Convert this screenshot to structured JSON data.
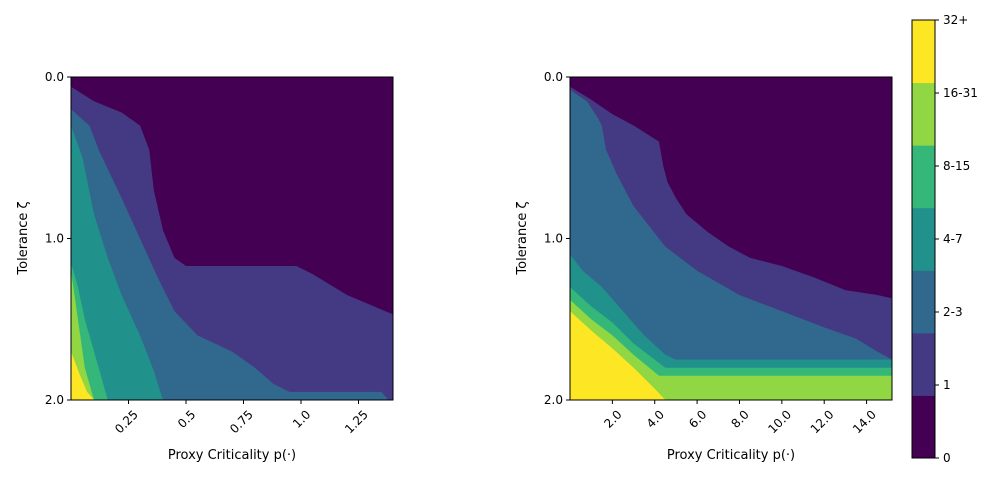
{
  "chart_data": [
    {
      "type": "heatmap",
      "xlabel": "Proxy Criticality p(·)",
      "ylabel": "Tolerance ζ",
      "xlim": [
        0.0,
        1.4
      ],
      "ylim": [
        0.0,
        2.0
      ],
      "y_inverted": true,
      "xticks": [
        {
          "value": 0.25,
          "label": "0.25"
        },
        {
          "value": 0.5,
          "label": "0.5"
        },
        {
          "value": 0.75,
          "label": "0.75"
        },
        {
          "value": 1.0,
          "label": "1.0"
        },
        {
          "value": 1.25,
          "label": "1.25"
        }
      ],
      "xtick_rotation": 45,
      "yticks": [
        {
          "value": 0.0,
          "label": "0.0"
        },
        {
          "value": 1.0,
          "label": "1.0"
        },
        {
          "value": 2.0,
          "label": "2.0"
        }
      ],
      "region_boundaries": [
        {
          "level": "1",
          "points": [
            [
              0.0,
              0.06
            ],
            [
              0.1,
              0.15
            ],
            [
              0.22,
              0.22
            ],
            [
              0.3,
              0.3
            ],
            [
              0.34,
              0.45
            ],
            [
              0.36,
              0.7
            ],
            [
              0.4,
              0.95
            ],
            [
              0.45,
              1.12
            ],
            [
              0.5,
              1.17
            ],
            [
              0.98,
              1.17
            ],
            [
              1.05,
              1.22
            ],
            [
              1.2,
              1.35
            ],
            [
              1.4,
              1.47
            ]
          ]
        },
        {
          "level": "2-3",
          "points": [
            [
              0.0,
              0.2
            ],
            [
              0.08,
              0.3
            ],
            [
              0.12,
              0.45
            ],
            [
              0.17,
              0.6
            ],
            [
              0.22,
              0.75
            ],
            [
              0.3,
              1.0
            ],
            [
              0.38,
              1.25
            ],
            [
              0.45,
              1.45
            ],
            [
              0.55,
              1.6
            ],
            [
              0.7,
              1.7
            ],
            [
              0.8,
              1.8
            ],
            [
              0.88,
              1.9
            ],
            [
              0.95,
              1.95
            ],
            [
              1.35,
              1.95
            ],
            [
              1.38,
              2.0
            ]
          ]
        },
        {
          "level": "4-7",
          "points": [
            [
              0.0,
              0.3
            ],
            [
              0.05,
              0.5
            ],
            [
              0.1,
              0.85
            ],
            [
              0.16,
              1.12
            ],
            [
              0.22,
              1.35
            ],
            [
              0.3,
              1.6
            ],
            [
              0.36,
              1.82
            ],
            [
              0.4,
              2.0
            ]
          ]
        },
        {
          "level": "8-15",
          "points": [
            [
              0.0,
              1.15
            ],
            [
              0.03,
              1.3
            ],
            [
              0.06,
              1.5
            ],
            [
              0.1,
              1.7
            ],
            [
              0.14,
              1.9
            ],
            [
              0.16,
              2.0
            ]
          ]
        },
        {
          "level": "16-31",
          "points": [
            [
              0.0,
              1.2
            ],
            [
              0.02,
              1.4
            ],
            [
              0.04,
              1.6
            ],
            [
              0.06,
              1.8
            ],
            [
              0.1,
              2.0
            ]
          ]
        },
        {
          "level": "32+",
          "points": [
            [
              0.0,
              1.7
            ],
            [
              0.04,
              1.85
            ],
            [
              0.07,
              1.95
            ],
            [
              0.1,
              2.0
            ]
          ]
        }
      ]
    },
    {
      "type": "heatmap",
      "xlabel": "Proxy Criticality p(·)",
      "ylabel": "Tolerance ζ",
      "xlim": [
        0.0,
        15.2
      ],
      "ylim": [
        0.0,
        2.0
      ],
      "y_inverted": true,
      "xticks": [
        {
          "value": 2.0,
          "label": "2.0"
        },
        {
          "value": 4.0,
          "label": "4.0"
        },
        {
          "value": 6.0,
          "label": "6.0"
        },
        {
          "value": 8.0,
          "label": "8.0"
        },
        {
          "value": 10.0,
          "label": "10.0"
        },
        {
          "value": 12.0,
          "label": "12.0"
        },
        {
          "value": 14.0,
          "label": "14.0"
        }
      ],
      "xtick_rotation": 45,
      "yticks": [
        {
          "value": 0.0,
          "label": "0.0"
        },
        {
          "value": 1.0,
          "label": "1.0"
        },
        {
          "value": 2.0,
          "label": "2.0"
        }
      ],
      "region_boundaries": [
        {
          "level": "1",
          "points": [
            [
              0.0,
              0.06
            ],
            [
              1.0,
              0.14
            ],
            [
              2.0,
              0.23
            ],
            [
              3.0,
              0.3
            ],
            [
              4.2,
              0.4
            ],
            [
              4.4,
              0.55
            ],
            [
              4.6,
              0.65
            ],
            [
              5.0,
              0.75
            ],
            [
              5.5,
              0.85
            ],
            [
              6.5,
              0.96
            ],
            [
              7.5,
              1.05
            ],
            [
              8.5,
              1.12
            ],
            [
              10.0,
              1.17
            ],
            [
              11.5,
              1.24
            ],
            [
              13.0,
              1.32
            ],
            [
              14.5,
              1.35
            ],
            [
              15.2,
              1.37
            ]
          ]
        },
        {
          "level": "2-3",
          "points": [
            [
              0.0,
              0.08
            ],
            [
              0.8,
              0.15
            ],
            [
              1.3,
              0.25
            ],
            [
              1.5,
              0.3
            ],
            [
              1.7,
              0.45
            ],
            [
              2.2,
              0.6
            ],
            [
              3.0,
              0.8
            ],
            [
              4.5,
              1.05
            ],
            [
              6.0,
              1.2
            ],
            [
              8.0,
              1.35
            ],
            [
              10.0,
              1.45
            ],
            [
              12.0,
              1.55
            ],
            [
              13.5,
              1.62
            ],
            [
              14.5,
              1.7
            ],
            [
              15.2,
              1.75
            ]
          ]
        },
        {
          "level": "4-7",
          "points": [
            [
              0.0,
              1.1
            ],
            [
              0.6,
              1.2
            ],
            [
              1.5,
              1.3
            ],
            [
              2.5,
              1.45
            ],
            [
              3.5,
              1.6
            ],
            [
              4.5,
              1.72
            ],
            [
              5.0,
              1.75
            ],
            [
              15.2,
              1.75
            ]
          ]
        },
        {
          "level": "8-15",
          "points": [
            [
              0.0,
              1.3
            ],
            [
              1.0,
              1.42
            ],
            [
              2.0,
              1.52
            ],
            [
              3.0,
              1.65
            ],
            [
              4.0,
              1.75
            ],
            [
              4.5,
              1.8
            ],
            [
              15.2,
              1.8
            ]
          ]
        },
        {
          "level": "16-31",
          "points": [
            [
              0.0,
              1.38
            ],
            [
              1.0,
              1.5
            ],
            [
              2.0,
              1.6
            ],
            [
              3.0,
              1.72
            ],
            [
              4.2,
              1.85
            ],
            [
              15.2,
              1.85
            ]
          ]
        },
        {
          "level": "32+",
          "points": [
            [
              0.0,
              1.45
            ],
            [
              1.0,
              1.57
            ],
            [
              2.0,
              1.68
            ],
            [
              3.0,
              1.8
            ],
            [
              4.0,
              1.93
            ],
            [
              4.5,
              2.0
            ]
          ]
        }
      ]
    }
  ],
  "colorbar": {
    "labels": [
      "0",
      "1",
      "2-3",
      "4-7",
      "8-15",
      "16-31",
      "32+"
    ],
    "colors": [
      "#440154",
      "#443983",
      "#31688e",
      "#21918c",
      "#35b779",
      "#90d743",
      "#fde725"
    ]
  }
}
